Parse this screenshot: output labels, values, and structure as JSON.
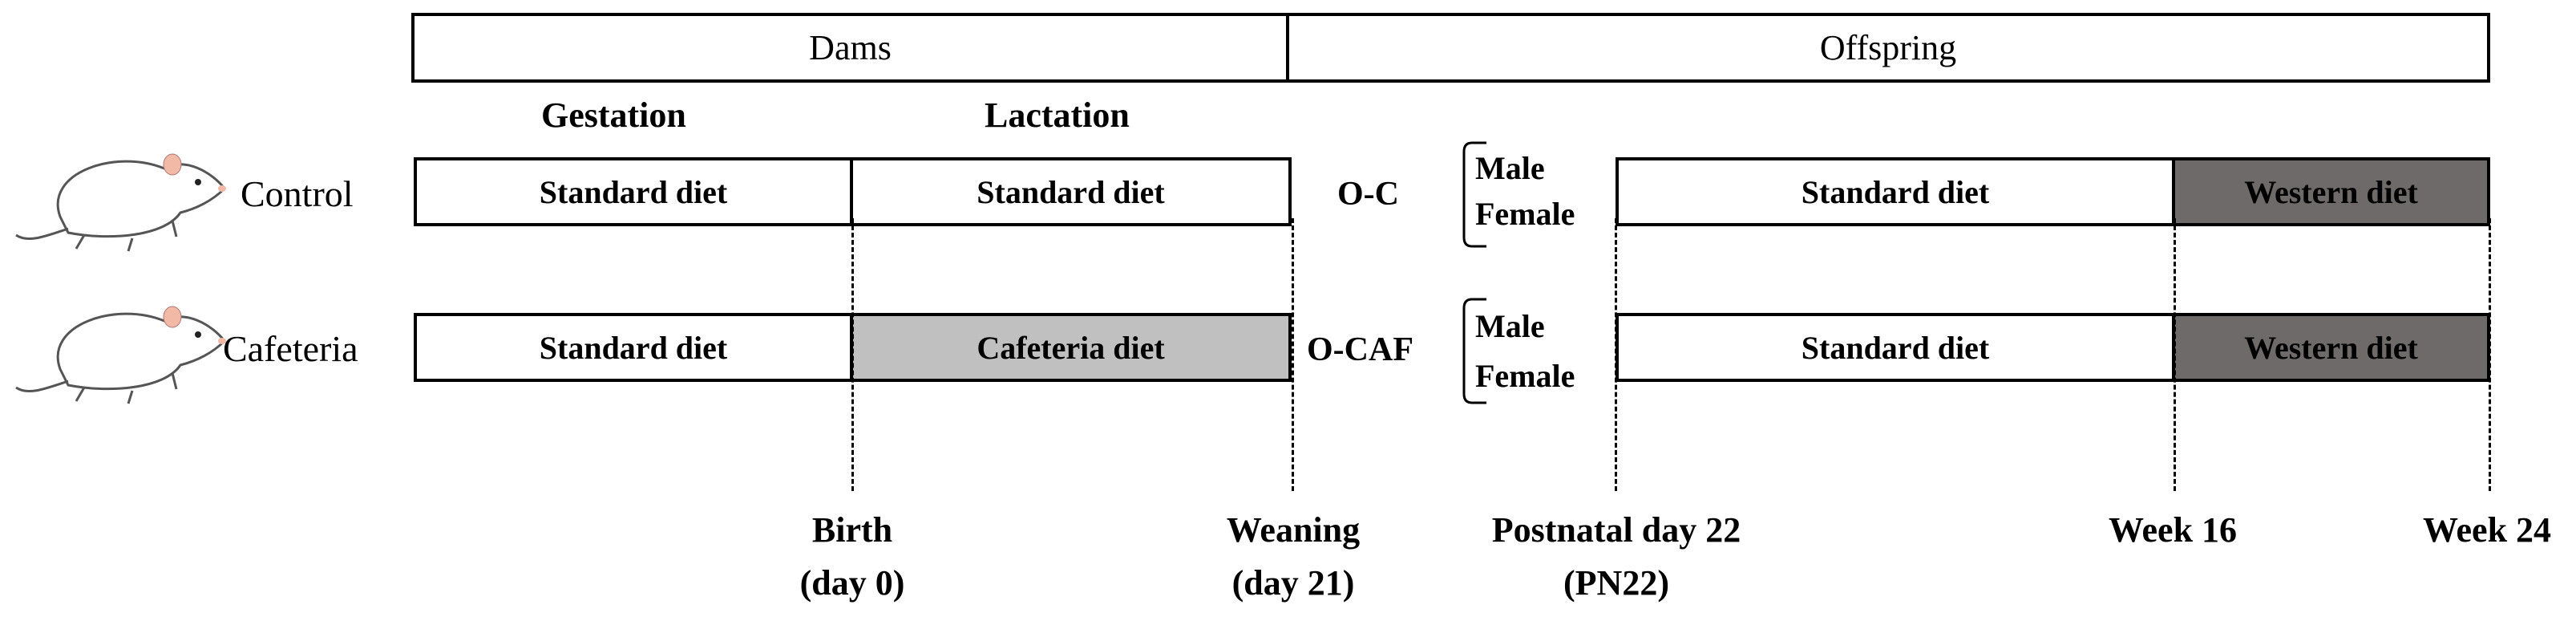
{
  "header": {
    "dams": "Dams",
    "offspring": "Offspring"
  },
  "phases": {
    "gestation": "Gestation",
    "lactation": "Lactation"
  },
  "groups": {
    "control": "Control",
    "cafeteria": "Cafeteria"
  },
  "offspring_groups": {
    "control": "O-C",
    "cafeteria": "O-CAF"
  },
  "sexes": {
    "male": "Male",
    "female": "Female"
  },
  "diets": {
    "standard": "Standard diet",
    "cafeteria": "Cafeteria diet",
    "western": "Western diet"
  },
  "timepoints": {
    "birth": {
      "line1": "Birth",
      "line2": "(day 0)"
    },
    "weaning": {
      "line1": "Weaning",
      "line2": "(day 21)"
    },
    "pn22": {
      "line1": "Postnatal day 22",
      "line2": "(PN22)"
    },
    "week16": {
      "line1": "Week 16"
    },
    "week24": {
      "line1": "Week 24"
    }
  },
  "colors": {
    "cafeteria_fill": "#c0c0c0",
    "western_fill": "#6d6a69"
  },
  "icons": [
    "rat-icon"
  ]
}
